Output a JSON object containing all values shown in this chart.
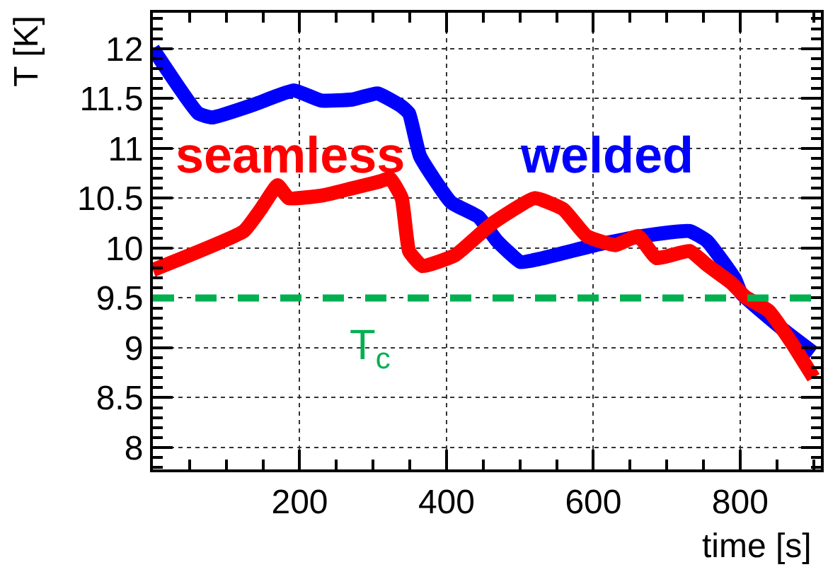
{
  "chart_data": {
    "type": "line",
    "xlabel": "time [s]",
    "ylabel": "T [K]",
    "xlim": [
      0,
      910
    ],
    "ylim": [
      7.78,
      12.36
    ],
    "xticks": [
      200,
      400,
      600,
      800
    ],
    "yticks": [
      8,
      8.5,
      9,
      9.5,
      10,
      10.5,
      11,
      11.5,
      12
    ],
    "grid": true,
    "legend": false,
    "marker": "none",
    "line_style": "solid",
    "series": [
      {
        "name": "welded",
        "color": "#0000ff",
        "x": [
          0,
          62,
          81,
          138,
          192,
          229,
          272,
          306,
          339,
          349,
          364,
          406,
          444,
          469,
          501,
          526,
          603,
          667,
          731,
          755,
          793,
          801,
          859,
          900
        ],
        "values": [
          12.0,
          11.35,
          11.31,
          11.44,
          11.58,
          11.48,
          11.49,
          11.55,
          11.42,
          11.35,
          10.92,
          10.46,
          10.31,
          10.07,
          9.86,
          9.89,
          10.03,
          10.12,
          10.17,
          10.07,
          9.69,
          9.55,
          9.18,
          8.95
        ]
      },
      {
        "name": "seamless",
        "color": "#ff0000",
        "x": [
          0,
          124,
          147,
          170,
          185,
          233,
          272,
          310,
          323,
          339,
          349,
          367,
          412,
          461,
          520,
          559,
          591,
          630,
          661,
          686,
          731,
          755,
          788,
          807,
          839,
          871,
          900
        ],
        "values": [
          9.78,
          10.17,
          10.39,
          10.63,
          10.5,
          10.53,
          10.6,
          10.67,
          10.7,
          10.5,
          9.97,
          9.82,
          9.93,
          10.24,
          10.5,
          10.39,
          10.12,
          10.03,
          10.12,
          9.9,
          9.97,
          9.83,
          9.65,
          9.51,
          9.37,
          9.04,
          8.7
        ]
      }
    ],
    "ref_lines": [
      {
        "axis": "y",
        "value": 9.5,
        "label": "T$_{c}$",
        "color": "#00b050",
        "line_style": "dashed"
      }
    ]
  }
}
